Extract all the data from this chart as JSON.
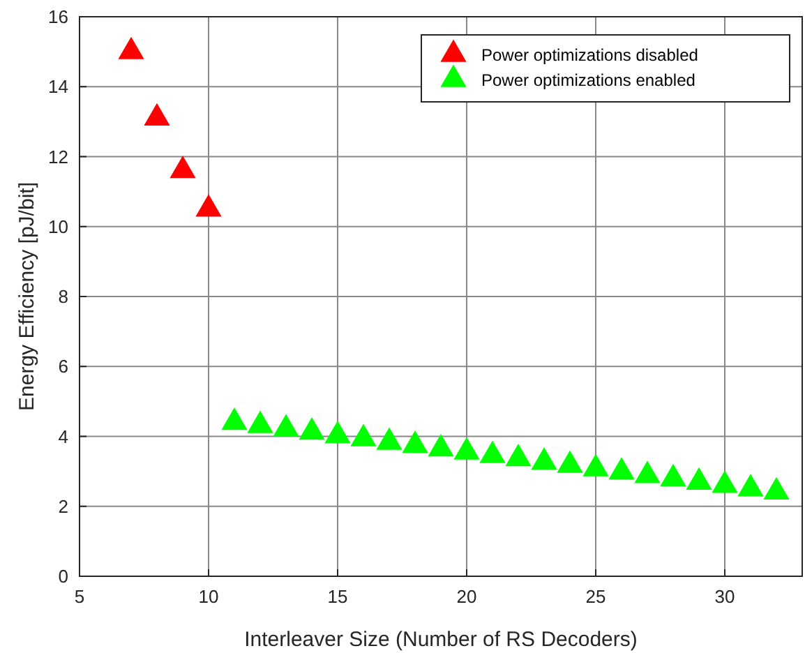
{
  "chart_data": {
    "type": "scatter",
    "xlabel": "Interleaver Size (Number of RS Decoders)",
    "ylabel": "Energy Efficiency [pJ/bit]",
    "xlim": [
      5,
      33
    ],
    "xticks": [
      5,
      10,
      15,
      20,
      25,
      30
    ],
    "ylim": [
      0,
      16
    ],
    "yticks": [
      0,
      2,
      4,
      6,
      8,
      10,
      12,
      14,
      16
    ],
    "grid": true,
    "legend": "top right",
    "marker": "triangle",
    "series": [
      {
        "name": "Power optimizations disabled",
        "color": "#ff0000",
        "x": [
          7,
          8,
          9,
          10
        ],
        "values": [
          15,
          13.1,
          11.6,
          10.5
        ]
      },
      {
        "name": "Power optimizations enabled",
        "color": "#00ff00",
        "x": [
          11,
          12,
          13,
          14,
          15,
          16,
          17,
          18,
          19,
          20,
          21,
          22,
          23,
          24,
          25,
          26,
          27,
          28,
          29,
          30,
          31,
          32
        ],
        "values": [
          4.4,
          4.31,
          4.21,
          4.12,
          4.02,
          3.93,
          3.83,
          3.74,
          3.64,
          3.55,
          3.45,
          3.36,
          3.26,
          3.17,
          3.07,
          2.98,
          2.88,
          2.79,
          2.69,
          2.6,
          2.5,
          2.41
        ]
      }
    ]
  }
}
